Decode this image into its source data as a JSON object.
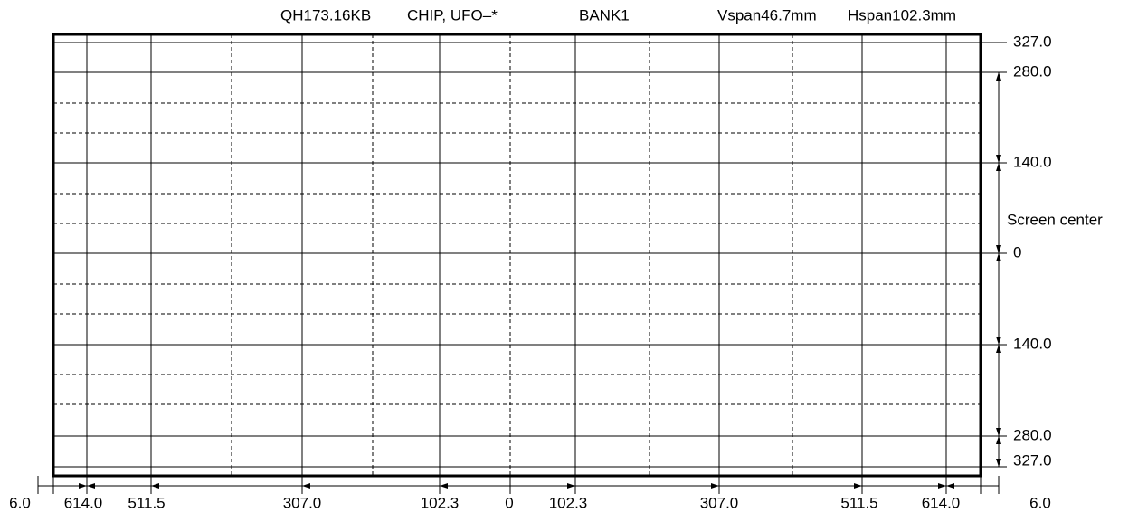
{
  "header": {
    "model": "QH173.16KB",
    "chip": "CHIP, UFO–*",
    "bank": "BANK1",
    "vspan": "Vspan46.7mm",
    "hspan": "Hspan102.3mm"
  },
  "right_labels": [
    "327.0",
    "280.0",
    "140.0",
    "Screen center",
    "0",
    "140.0",
    "280.0",
    "327.0"
  ],
  "bottom_labels": [
    "6.0",
    "614.0",
    "511.5",
    "307.0",
    "102.3",
    "0",
    "102.3",
    "307.0",
    "511.5",
    "614.0",
    "6.0"
  ]
}
